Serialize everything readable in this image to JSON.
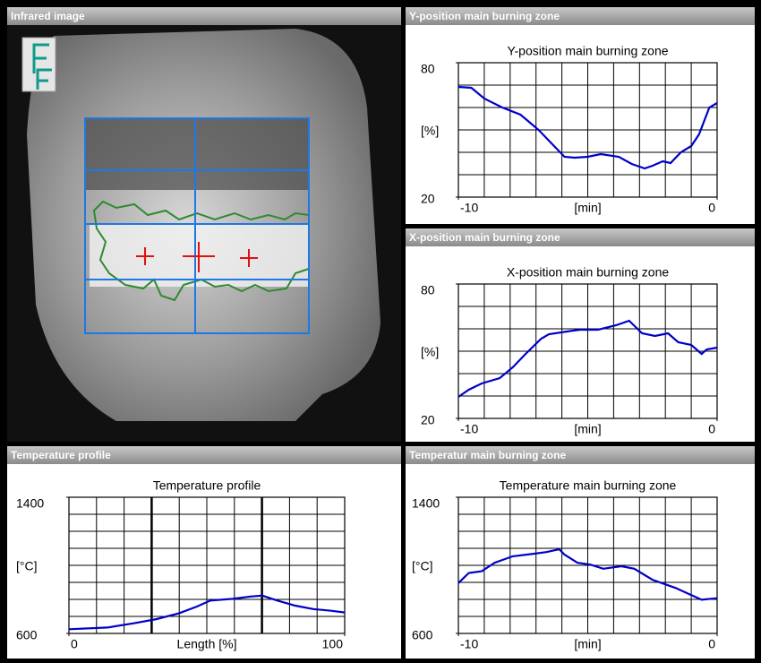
{
  "panels": [
    {
      "title": "Infrared image"
    },
    {
      "title": "Y-position main burning zone"
    },
    {
      "title": "X-position main burning zone"
    },
    {
      "title": "Temperature profile"
    },
    {
      "title": "Temperatur main burning zone"
    }
  ],
  "chart_data": [
    {
      "type": "line",
      "title": "Y-position main burning zone",
      "ylabel": "[%]",
      "xlabel": "[min]",
      "x": [
        -10,
        -9.5,
        -9,
        -8.3,
        -7.6,
        -6.9,
        -6.4,
        -5.9,
        -5.5,
        -5,
        -4.5,
        -3.8,
        -3.3,
        -2.8,
        -2.5,
        -2.1,
        -1.8,
        -1.4,
        -1,
        -0.7,
        -0.3,
        0
      ],
      "values": [
        69.2,
        68.8,
        64,
        60,
        56.8,
        50,
        44,
        38,
        37.6,
        38,
        39.2,
        38,
        34.8,
        32.8,
        34,
        36,
        35.2,
        40,
        42.8,
        48,
        60,
        62
      ],
      "color": "#0000c8",
      "xlim": [
        -10,
        0
      ],
      "xticks": [
        -10,
        0
      ],
      "ylim": [
        20,
        80
      ],
      "yticks": [
        20,
        80
      ],
      "grid": true
    },
    {
      "type": "line",
      "title": "X-position main burning zone",
      "ylabel": "[%]",
      "xlabel": "[min]",
      "x": [
        -10,
        -9.6,
        -9.1,
        -8.4,
        -7.9,
        -7.4,
        -6.8,
        -6.5,
        -5.8,
        -5.3,
        -4.6,
        -3.9,
        -3.4,
        -2.9,
        -2.4,
        -1.9,
        -1.5,
        -1,
        -0.6,
        -0.4,
        0
      ],
      "values": [
        29.6,
        32.8,
        35.6,
        38,
        42.8,
        48.8,
        55.6,
        57.6,
        58.8,
        59.6,
        59.6,
        61.6,
        63.6,
        58,
        56.8,
        58,
        54,
        52.8,
        48.8,
        50.8,
        51.6
      ],
      "color": "#0000c8",
      "xlim": [
        -10,
        0
      ],
      "xticks": [
        -10,
        0
      ],
      "ylim": [
        20,
        80
      ],
      "yticks": [
        20,
        80
      ],
      "grid": true
    },
    {
      "type": "line",
      "title": "Temperature profile",
      "ylabel": "[°C]",
      "xlabel": "Length [%]",
      "x": [
        0,
        14,
        23.7,
        31.8,
        40,
        46.4,
        51.3,
        59.4,
        65.9,
        70.1,
        75.6,
        82.1,
        88.6,
        95.1,
        100
      ],
      "values": [
        625,
        635,
        660,
        684,
        719,
        758,
        793,
        803,
        817,
        822,
        793,
        763,
        743,
        733,
        723
      ],
      "color": "#0000c8",
      "xlim": [
        0,
        100
      ],
      "xticks": [
        0,
        100
      ],
      "ylim": [
        600,
        1400
      ],
      "yticks": [
        600,
        1400
      ],
      "grid": true
    },
    {
      "type": "line",
      "title": "Temperature main burning zone",
      "ylabel": "[°C]",
      "xlabel": "[min]",
      "x": [
        -10,
        -9.6,
        -9.1,
        -8.6,
        -7.9,
        -7.1,
        -6.6,
        -6.1,
        -5.9,
        -5.4,
        -4.9,
        -4.4,
        -3.7,
        -3.2,
        -2.5,
        -1.6,
        -1.1,
        -0.6,
        0
      ],
      "values": [
        896,
        955,
        965,
        1015,
        1053,
        1068,
        1078,
        1094,
        1063,
        1015,
        1004,
        980,
        995,
        980,
        915,
        867,
        832,
        798,
        807
      ],
      "color": "#0000c8",
      "xlim": [
        -10,
        0
      ],
      "xticks": [
        -10,
        0
      ],
      "ylim": [
        600,
        1400
      ],
      "yticks": [
        600,
        1400
      ],
      "grid": true
    }
  ]
}
